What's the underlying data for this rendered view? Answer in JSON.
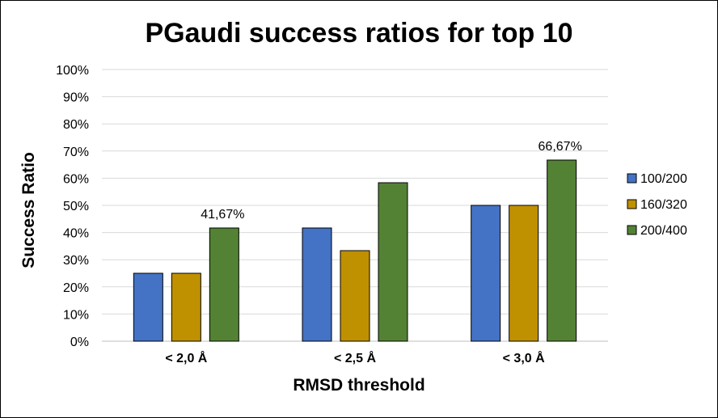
{
  "chart_data": {
    "type": "bar",
    "title": "PGaudi success ratios for top 10",
    "xlabel": "RMSD threshold",
    "ylabel": "Success Ratio",
    "categories": [
      "< 2,0 Å",
      "< 2,5 Å",
      "< 3,0 Å"
    ],
    "ylim": [
      0,
      100
    ],
    "yticks": [
      "0%",
      "10%",
      "20%",
      "30%",
      "40%",
      "50%",
      "60%",
      "70%",
      "80%",
      "90%",
      "100%"
    ],
    "grid": true,
    "legend_position": "right",
    "series": [
      {
        "name": "100/200",
        "color": "#4472C4",
        "values": [
          25,
          41.67,
          50
        ]
      },
      {
        "name": "160/320",
        "color": "#BF9000",
        "values": [
          25,
          33.33,
          50
        ]
      },
      {
        "name": "200/400",
        "color": "#548235",
        "values": [
          41.67,
          58.33,
          66.67
        ]
      }
    ],
    "data_labels": [
      {
        "series": 2,
        "category": 0,
        "text": "41,67%"
      },
      {
        "series": 2,
        "category": 2,
        "text": "66,67%"
      }
    ]
  }
}
